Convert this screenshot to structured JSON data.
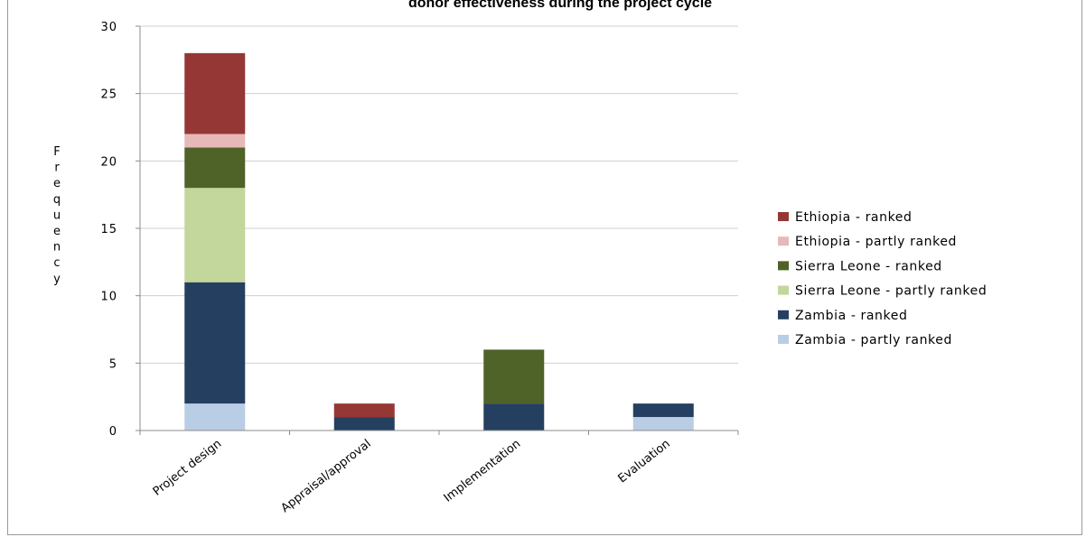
{
  "chart_data": {
    "type": "bar",
    "stacked": true,
    "title": "donor effectiveness during the project cycle",
    "xlabel": "",
    "ylabel": "Frequency",
    "categories": [
      "Project design",
      "Appraisal/approval",
      "Implementation",
      "Evaluation"
    ],
    "ylim": [
      0,
      30
    ],
    "yticks": [
      0,
      5,
      10,
      15,
      20,
      25,
      30
    ],
    "grid": true,
    "legend_position": "right",
    "series": [
      {
        "name": "Zambia - partly ranked",
        "color": "#b9cde5",
        "values": [
          2,
          0,
          0,
          1
        ]
      },
      {
        "name": "Zambia - ranked",
        "color": "#243f60",
        "values": [
          9,
          1,
          2,
          1
        ]
      },
      {
        "name": "Sierra Leone - partly ranked",
        "color": "#c3d69b",
        "values": [
          7,
          0,
          0,
          0
        ]
      },
      {
        "name": "Sierra Leone - ranked",
        "color": "#4f6228",
        "values": [
          3,
          0,
          4,
          0
        ]
      },
      {
        "name": "Ethiopia - partly ranked",
        "color": "#e6b9b8",
        "values": [
          1,
          0,
          0,
          0
        ]
      },
      {
        "name": "Ethiopia - ranked",
        "color": "#953735",
        "values": [
          6,
          1,
          0,
          0
        ]
      }
    ]
  }
}
